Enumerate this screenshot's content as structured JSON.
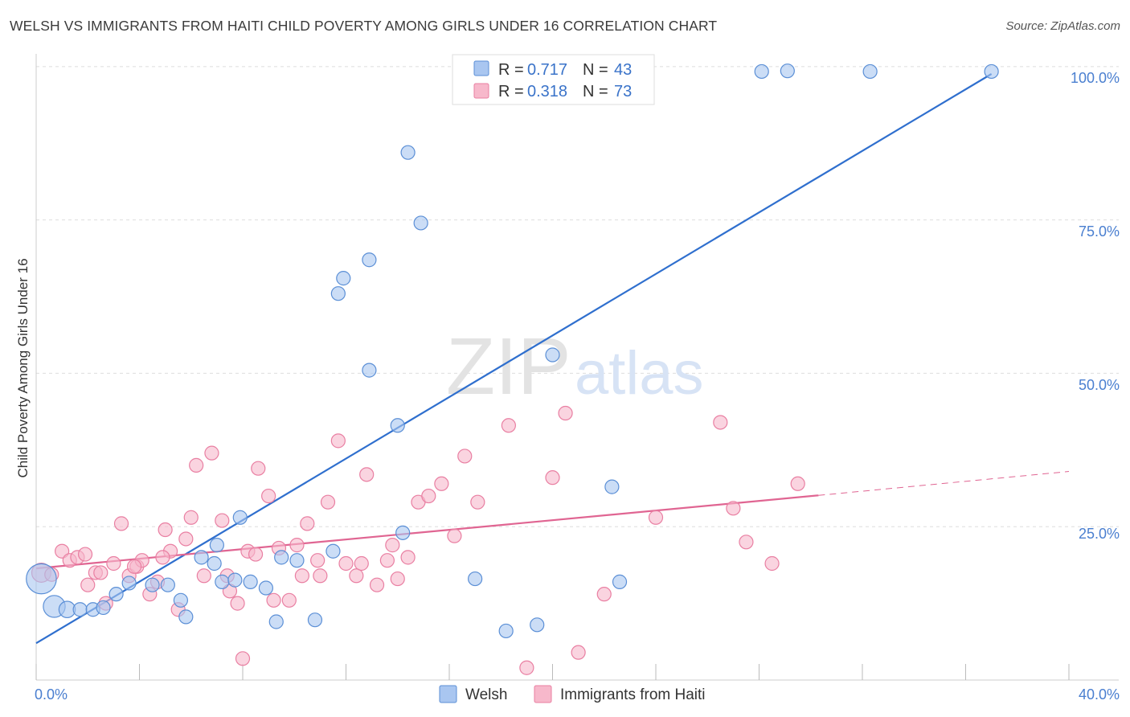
{
  "title": "WELSH VS IMMIGRANTS FROM HAITI CHILD POVERTY AMONG GIRLS UNDER 16 CORRELATION CHART",
  "source": "Source: ZipAtlas.com",
  "watermark": {
    "zip": "ZIP",
    "atlas": "atlas"
  },
  "colors": {
    "welsh_fill": "#a9c6f0",
    "welsh_stroke": "#5b8fd6",
    "welsh_line": "#2f6fce",
    "haiti_fill": "#f7b8cb",
    "haiti_stroke": "#e97fa2",
    "haiti_line": "#e06592",
    "axis_label": "#4a7fd0",
    "grid": "#dddddd"
  },
  "legend": {
    "rows": [
      {
        "r_label": "R = ",
        "r_value": "0.717",
        "n_label": "N = ",
        "n_value": "43"
      },
      {
        "r_label": "R = ",
        "r_value": "0.318",
        "n_label": "N = ",
        "n_value": "73"
      }
    ]
  },
  "chart_data": {
    "type": "scatter",
    "title": "WELSH VS IMMIGRANTS FROM HAITI CHILD POVERTY AMONG GIRLS UNDER 16 CORRELATION CHART",
    "xlabel": "",
    "ylabel": "Child Poverty Among Girls Under 16",
    "xlim": [
      0,
      40
    ],
    "ylim": [
      0,
      100
    ],
    "x_tick_labels": [
      "0.0%",
      "40.0%"
    ],
    "y_ticks": [
      25,
      50,
      75,
      100
    ],
    "y_tick_labels": [
      "25.0%",
      "50.0%",
      "75.0%",
      "100.0%"
    ],
    "grid": true,
    "legend_position": "top-center",
    "series": [
      {
        "name": "Welsh",
        "color": "#a9c6f0",
        "trend": {
          "x": [
            0,
            37
          ],
          "y": [
            6,
            98.8
          ]
        },
        "points": [
          [
            0.2,
            16.5,
            2.2
          ],
          [
            0.7,
            12,
            1.6
          ],
          [
            1.2,
            11.5,
            1.2
          ],
          [
            1.7,
            11.5,
            1
          ],
          [
            2.2,
            11.5,
            1
          ],
          [
            2.6,
            11.8,
            1
          ],
          [
            3.1,
            14,
            1
          ],
          [
            3.6,
            15.8,
            1
          ],
          [
            4.5,
            15.5,
            1
          ],
          [
            5.1,
            15.5,
            1
          ],
          [
            5.6,
            13,
            1
          ],
          [
            5.8,
            10.3,
            1
          ],
          [
            6.4,
            20,
            1
          ],
          [
            6.9,
            19,
            1
          ],
          [
            7.2,
            16,
            1
          ],
          [
            7.7,
            16.3,
            1
          ],
          [
            8.3,
            16,
            1
          ],
          [
            8.9,
            15,
            1
          ],
          [
            9.3,
            9.5,
            1
          ],
          [
            10.1,
            19.5,
            1
          ],
          [
            10.8,
            9.8,
            1
          ],
          [
            11.7,
            63,
            1
          ],
          [
            11.9,
            65.5,
            1
          ],
          [
            12.9,
            68.5,
            1
          ],
          [
            12.9,
            50.5,
            1
          ],
          [
            14,
            41.5,
            1
          ],
          [
            14.4,
            86,
            1
          ],
          [
            14.9,
            74.5,
            1
          ],
          [
            17,
            16.5,
            1
          ],
          [
            18.2,
            8,
            1
          ],
          [
            19.4,
            9,
            1
          ],
          [
            20,
            53,
            1
          ],
          [
            22.3,
            31.5,
            1
          ],
          [
            22.6,
            16,
            1
          ],
          [
            28.1,
            99.2,
            1
          ],
          [
            29.1,
            99.3,
            1
          ],
          [
            32.3,
            99.2,
            1
          ],
          [
            37,
            99.2,
            1
          ],
          [
            7.9,
            26.5,
            1
          ],
          [
            7.0,
            22,
            1
          ],
          [
            11.5,
            21,
            1
          ],
          [
            14.2,
            24,
            1
          ],
          [
            9.5,
            20,
            1
          ]
        ]
      },
      {
        "name": "Immigrants from Haiti",
        "color": "#f7b8cb",
        "trend": {
          "x": [
            0,
            30.3
          ],
          "y": [
            18.2,
            30.1
          ],
          "dashed_to": [
            40,
            34
          ]
        },
        "points": [
          [
            0.2,
            17.5,
            1.4
          ],
          [
            0.6,
            17.2,
            1
          ],
          [
            1.0,
            21,
            1
          ],
          [
            1.3,
            19.5,
            1
          ],
          [
            1.6,
            20,
            1
          ],
          [
            2.0,
            15.5,
            1
          ],
          [
            2.3,
            17.5,
            1
          ],
          [
            2.7,
            12.5,
            1
          ],
          [
            3.0,
            19,
            1
          ],
          [
            3.3,
            25.5,
            1
          ],
          [
            3.6,
            17,
            1
          ],
          [
            3.9,
            18.5,
            1
          ],
          [
            4.1,
            19.5,
            1
          ],
          [
            4.4,
            14,
            1
          ],
          [
            4.7,
            16,
            1
          ],
          [
            5.0,
            24.5,
            1
          ],
          [
            5.2,
            21,
            1
          ],
          [
            5.5,
            11.5,
            1
          ],
          [
            5.8,
            23,
            1
          ],
          [
            6.2,
            35,
            1
          ],
          [
            6.5,
            17,
            1
          ],
          [
            6.8,
            37,
            1
          ],
          [
            7.2,
            26,
            1
          ],
          [
            7.5,
            14.5,
            1
          ],
          [
            7.8,
            12.5,
            1
          ],
          [
            8.2,
            21,
            1
          ],
          [
            8.6,
            34.5,
            1
          ],
          [
            9.0,
            30,
            1
          ],
          [
            9.4,
            21.5,
            1
          ],
          [
            9.8,
            13,
            1
          ],
          [
            10.1,
            22,
            1
          ],
          [
            10.5,
            25.5,
            1
          ],
          [
            10.9,
            19.5,
            1
          ],
          [
            11.3,
            29,
            1
          ],
          [
            11.7,
            39,
            1
          ],
          [
            12.0,
            19,
            1
          ],
          [
            12.4,
            17,
            1
          ],
          [
            12.8,
            33.5,
            1
          ],
          [
            13.2,
            15.5,
            1
          ],
          [
            13.6,
            19.5,
            1
          ],
          [
            14.0,
            16.5,
            1
          ],
          [
            14.4,
            20,
            1
          ],
          [
            14.8,
            29,
            1
          ],
          [
            15.2,
            30,
            1
          ],
          [
            15.7,
            32,
            1
          ],
          [
            16.2,
            23.5,
            1
          ],
          [
            16.6,
            36.5,
            1
          ],
          [
            17.1,
            29,
            1
          ],
          [
            8.0,
            3.5,
            1
          ],
          [
            11.0,
            17,
            1
          ],
          [
            18.3,
            41.5,
            1
          ],
          [
            19.0,
            2,
            1
          ],
          [
            20.0,
            33,
            1
          ],
          [
            20.5,
            43.5,
            1
          ],
          [
            21.0,
            4.5,
            1
          ],
          [
            22.0,
            14,
            1
          ],
          [
            24.0,
            26.5,
            1
          ],
          [
            26.5,
            42,
            1
          ],
          [
            27.0,
            28,
            1
          ],
          [
            27.5,
            22.5,
            1
          ],
          [
            28.5,
            19,
            1
          ],
          [
            29.5,
            32,
            1
          ],
          [
            1.9,
            20.5,
            1
          ],
          [
            2.5,
            17.5,
            1
          ],
          [
            3.8,
            18.5,
            1
          ],
          [
            4.9,
            20,
            1
          ],
          [
            6.0,
            26.5,
            1
          ],
          [
            7.4,
            17,
            1
          ],
          [
            8.5,
            20.5,
            1
          ],
          [
            9.2,
            13,
            1
          ],
          [
            10.3,
            17,
            1
          ],
          [
            12.6,
            19,
            1
          ],
          [
            13.8,
            22,
            1
          ]
        ]
      }
    ]
  },
  "bottom_legend": [
    "Welsh",
    "Immigrants from Haiti"
  ]
}
